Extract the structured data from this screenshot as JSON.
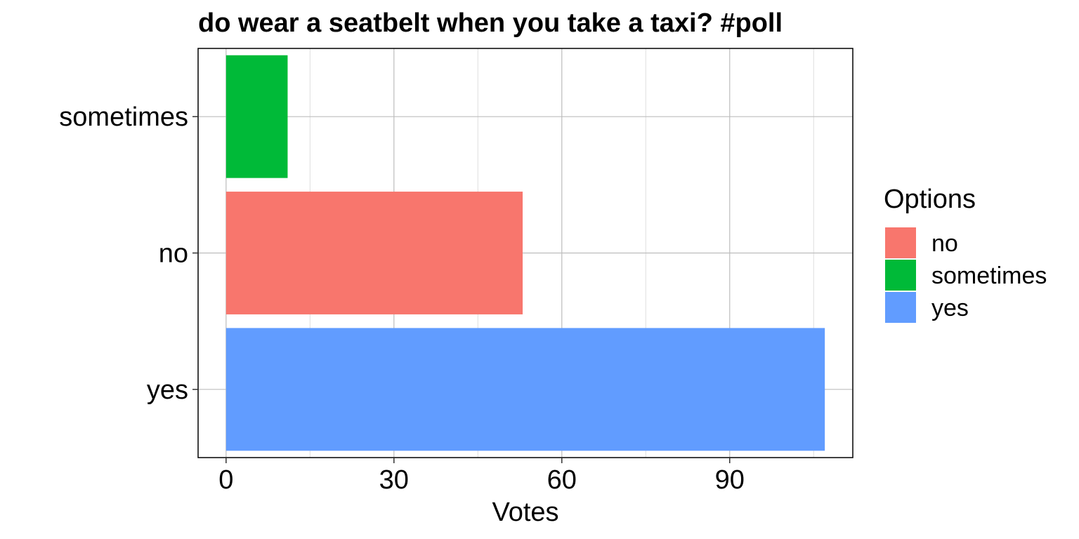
{
  "chart_data": {
    "type": "bar",
    "orientation": "horizontal",
    "title": "do wear a seatbelt when you take a taxi? #poll",
    "xlabel": "Votes",
    "ylabel": "",
    "categories": [
      "yes",
      "no",
      "sometimes"
    ],
    "values": [
      107,
      53,
      11
    ],
    "colors": [
      "#619CFF",
      "#F8766D",
      "#00BA38"
    ],
    "xlim": [
      -5,
      112
    ],
    "xticks": [
      0,
      30,
      60,
      90
    ],
    "grid": true,
    "legend": {
      "title": "Options",
      "placement": "right",
      "items": [
        {
          "label": "no",
          "color": "#F8766D"
        },
        {
          "label": "sometimes",
          "color": "#00BA38"
        },
        {
          "label": "yes",
          "color": "#619CFF"
        }
      ]
    }
  }
}
